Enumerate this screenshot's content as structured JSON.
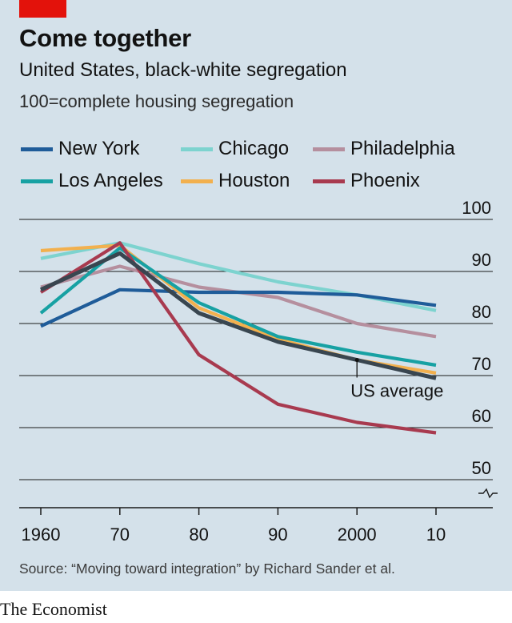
{
  "header": {
    "title": "Come together",
    "subtitle": "United States, black-white segregation",
    "note": "100=complete housing segregation"
  },
  "footer": {
    "source": "Source: “Moving toward integration” by Richard Sander et al.",
    "brand": "The Economist"
  },
  "chart_data": {
    "type": "line",
    "title": "Come together",
    "subtitle": "United States, black-white segregation",
    "note": "100=complete housing segregation",
    "x": [
      1960,
      1970,
      1980,
      1990,
      2000,
      2010
    ],
    "x_tick_labels": [
      "1960",
      "70",
      "80",
      "90",
      "2000",
      "10"
    ],
    "y_ticks": [
      50,
      60,
      70,
      80,
      90,
      100
    ],
    "y_tick_labels": [
      "50",
      "60",
      "70",
      "80",
      "90",
      "100"
    ],
    "ylim": [
      45,
      100
    ],
    "y_axis_break": true,
    "grid": true,
    "legend_position": "top",
    "series": [
      {
        "name": "New York",
        "color": "#1f5c99",
        "values": [
          79.5,
          86.5,
          86,
          86,
          85.5,
          83.5
        ]
      },
      {
        "name": "Chicago",
        "color": "#7dd3cf",
        "values": [
          92.5,
          95.5,
          91.5,
          88,
          85.5,
          82.5
        ]
      },
      {
        "name": "Philadelphia",
        "color": "#b58f9e",
        "values": [
          87,
          91,
          87,
          85,
          80,
          77.5
        ]
      },
      {
        "name": "Los Angeles",
        "color": "#17a1a3",
        "values": [
          82,
          94.5,
          84,
          77.5,
          74.5,
          72
        ]
      },
      {
        "name": "Houston",
        "color": "#f2b04e",
        "values": [
          94,
          95,
          83,
          77,
          73,
          70.5
        ]
      },
      {
        "name": "Phoenix",
        "color": "#a83a4f",
        "values": [
          86,
          95.5,
          74,
          64.5,
          61,
          59
        ]
      },
      {
        "name": "US average",
        "color": "#394650",
        "values": [
          86.5,
          93.5,
          82,
          76.5,
          73,
          69.5
        ]
      }
    ],
    "annotations": [
      {
        "text": "US average",
        "x": 2000,
        "y": 73
      }
    ]
  }
}
